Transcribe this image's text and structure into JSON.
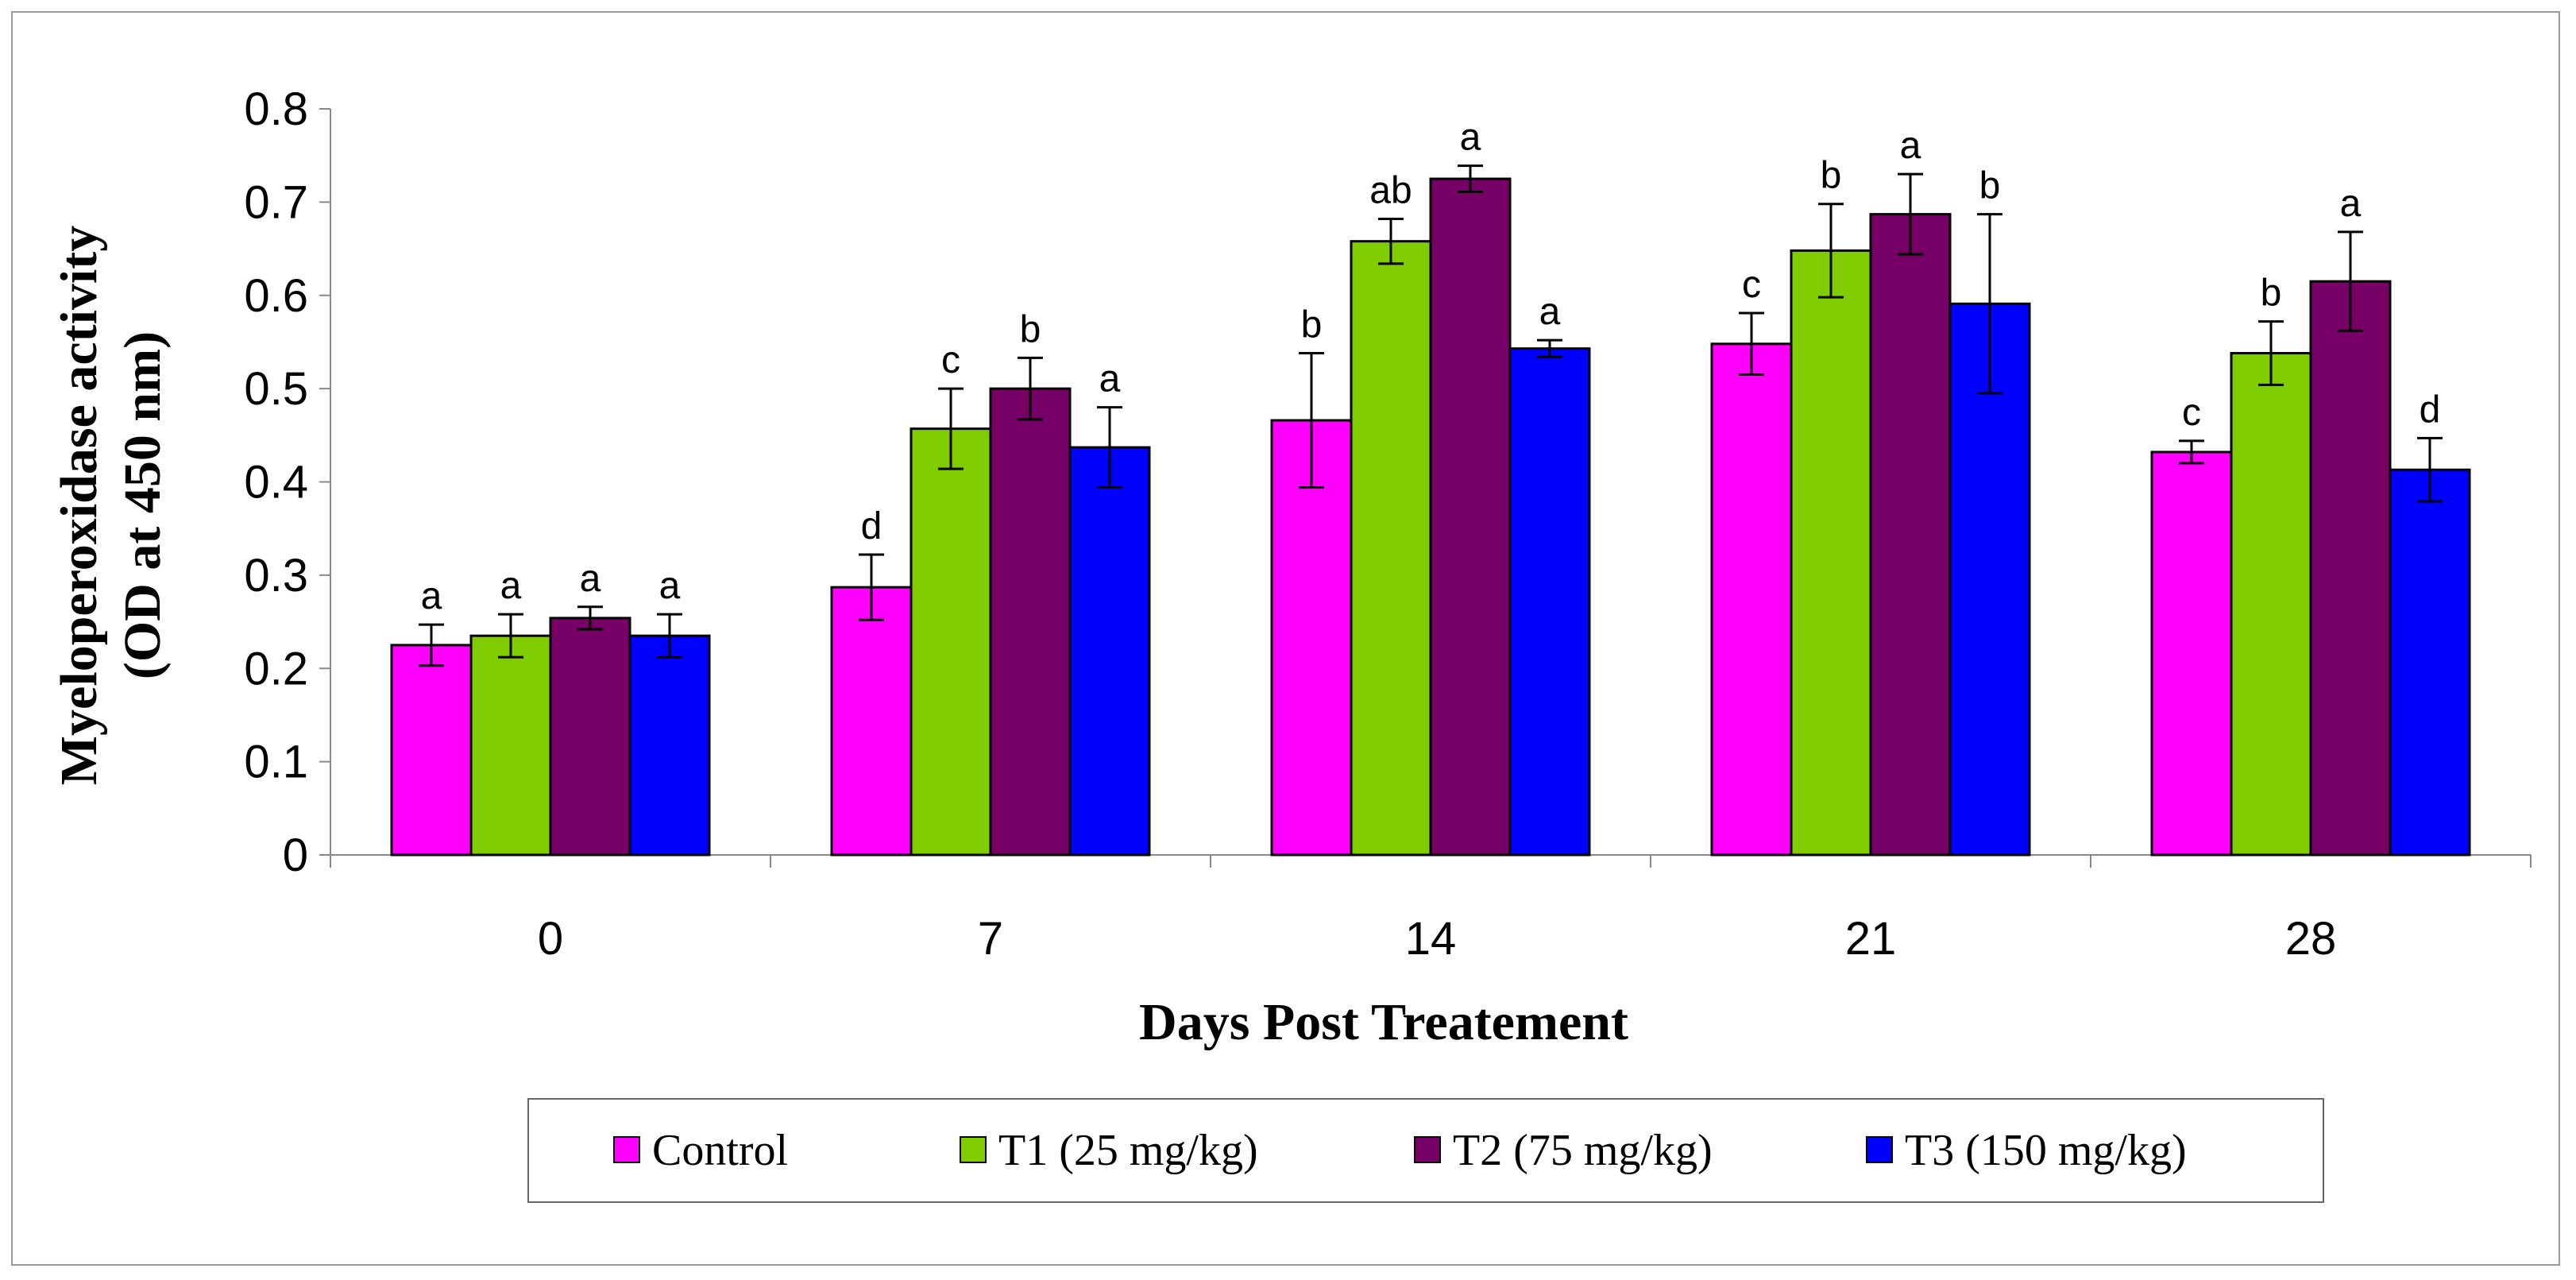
{
  "chart_data": {
    "type": "bar",
    "title": "",
    "xlabel": "Days Post Treatement",
    "ylabel_lines": [
      "Myeloperoxidase activity",
      "(OD at 450 nm)"
    ],
    "ylim": [
      0,
      0.8
    ],
    "yticks": [
      "0",
      "0.1",
      "0.2",
      "0.3",
      "0.4",
      "0.5",
      "0.6",
      "0.7",
      "0.8"
    ],
    "categories": [
      "0",
      "7",
      "14",
      "21",
      "28"
    ],
    "legend_position": "bottom",
    "series": [
      {
        "name": "Control",
        "color": "#ff00ff",
        "values": [
          0.225,
          0.287,
          0.466,
          0.548,
          0.432
        ],
        "errors": [
          0.022,
          0.035,
          0.072,
          0.033,
          0.012
        ],
        "letters": [
          "a",
          "d",
          "b",
          "c",
          "c"
        ]
      },
      {
        "name": "T1 (25 mg/kg)",
        "color": "#7fcc00",
        "values": [
          0.235,
          0.457,
          0.658,
          0.648,
          0.538
        ],
        "errors": [
          0.023,
          0.043,
          0.024,
          0.05,
          0.034
        ],
        "letters": [
          "a",
          "c",
          "ab",
          "b",
          "b"
        ]
      },
      {
        "name": "T2 (75 mg/kg)",
        "color": "#770066",
        "values": [
          0.254,
          0.5,
          0.725,
          0.687,
          0.615
        ],
        "errors": [
          0.012,
          0.033,
          0.014,
          0.043,
          0.053
        ],
        "letters": [
          "a",
          "b",
          "a",
          "a",
          "a"
        ]
      },
      {
        "name": "T3 (150 mg/kg)",
        "color": "#0000ff",
        "values": [
          0.235,
          0.437,
          0.543,
          0.591,
          0.413
        ],
        "errors": [
          0.023,
          0.043,
          0.009,
          0.096,
          0.034
        ],
        "letters": [
          "a",
          "a",
          "a",
          "b",
          "d"
        ]
      }
    ]
  }
}
